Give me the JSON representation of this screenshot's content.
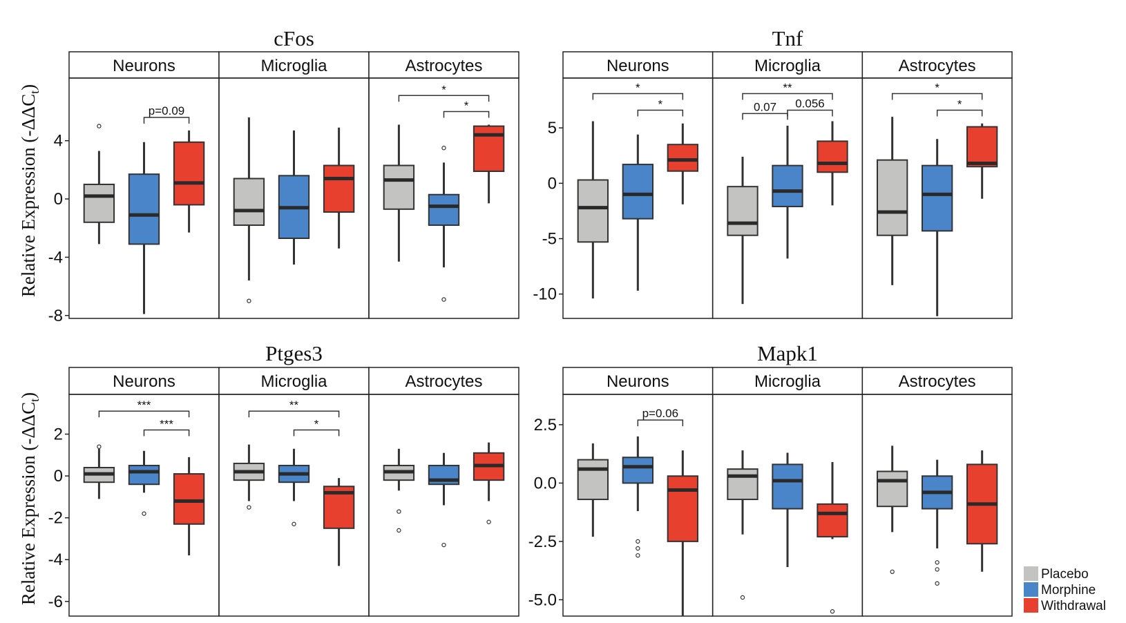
{
  "ylabels": [
    "Relative Expression (-ΔΔC",
    "t",
    ")"
  ],
  "colors": {
    "Placebo": "#c3c3c1",
    "Morphine": "#4b85c9",
    "Withdrawal": "#e8402f"
  },
  "legend": [
    {
      "label": "Placebo",
      "color": "#c3c3c1"
    },
    {
      "label": "Morphine",
      "color": "#4b85c9"
    },
    {
      "label": "Withdrawal",
      "color": "#e8402f"
    }
  ],
  "chart_data": [
    {
      "type": "boxplot",
      "title": "cFos",
      "ylim": [
        -8.2,
        8.3
      ],
      "yticks": [
        4,
        0,
        -4,
        -8
      ],
      "ytick_labels": [
        "4",
        "0",
        "-4",
        "-8"
      ],
      "facets": [
        {
          "label": "Neurons",
          "groups": [
            {
              "group": "Placebo",
              "min": -3.1,
              "q1": -1.6,
              "median": 0.2,
              "q3": 1.0,
              "max": 3.3,
              "outliers": [
                5.0
              ]
            },
            {
              "group": "Morphine",
              "min": -7.9,
              "q1": -3.1,
              "median": -1.1,
              "q3": 1.7,
              "max": 3.9,
              "outliers": []
            },
            {
              "group": "Withdrawal",
              "min": -2.3,
              "q1": -0.4,
              "median": 1.1,
              "q3": 3.9,
              "max": 4.7,
              "outliers": []
            }
          ],
          "brackets": [
            {
              "from": "Morphine",
              "to": "Withdrawal",
              "y": 5.6,
              "label": "p=0.09"
            }
          ]
        },
        {
          "label": "Microglia",
          "groups": [
            {
              "group": "Placebo",
              "min": -5.6,
              "q1": -1.8,
              "median": -0.8,
              "q3": 1.4,
              "max": 5.6,
              "outliers": [
                -7.0
              ]
            },
            {
              "group": "Morphine",
              "min": -4.5,
              "q1": -2.7,
              "median": -0.6,
              "q3": 1.6,
              "max": 4.7,
              "outliers": []
            },
            {
              "group": "Withdrawal",
              "min": -3.4,
              "q1": -0.9,
              "median": 1.4,
              "q3": 2.3,
              "max": 4.9,
              "outliers": []
            }
          ],
          "brackets": []
        },
        {
          "label": "Astrocytes",
          "groups": [
            {
              "group": "Placebo",
              "min": -4.3,
              "q1": -0.7,
              "median": 1.3,
              "q3": 2.3,
              "max": 5.1,
              "outliers": []
            },
            {
              "group": "Morphine",
              "min": -4.7,
              "q1": -1.8,
              "median": -0.5,
              "q3": 0.3,
              "max": 2.5,
              "outliers": [
                3.5,
                -6.9
              ]
            },
            {
              "group": "Withdrawal",
              "min": -0.3,
              "q1": 1.9,
              "median": 4.4,
              "q3": 5.0,
              "max": 5.1,
              "outliers": []
            }
          ],
          "brackets": [
            {
              "from": "Placebo",
              "to": "Withdrawal",
              "y": 7.1,
              "label": "*"
            },
            {
              "from": "Morphine",
              "to": "Withdrawal",
              "y": 6.0,
              "label": "*"
            }
          ]
        }
      ]
    },
    {
      "type": "boxplot",
      "title": "Tnf",
      "ylim": [
        -12.2,
        9.5
      ],
      "yticks": [
        5,
        0,
        -5,
        -10
      ],
      "ytick_labels": [
        "5",
        "0",
        "-5",
        "-10"
      ],
      "facets": [
        {
          "label": "Neurons",
          "groups": [
            {
              "group": "Placebo",
              "min": -10.4,
              "q1": -5.3,
              "median": -2.2,
              "q3": 0.3,
              "max": 5.6,
              "outliers": []
            },
            {
              "group": "Morphine",
              "min": -9.7,
              "q1": -3.2,
              "median": -1.0,
              "q3": 1.7,
              "max": 4.4,
              "outliers": []
            },
            {
              "group": "Withdrawal",
              "min": -1.9,
              "q1": 1.1,
              "median": 2.1,
              "q3": 3.5,
              "max": 5.4,
              "outliers": []
            }
          ],
          "brackets": [
            {
              "from": "Placebo",
              "to": "Withdrawal",
              "y": 8.1,
              "label": "*"
            },
            {
              "from": "Morphine",
              "to": "Withdrawal",
              "y": 6.6,
              "label": "*"
            }
          ]
        },
        {
          "label": "Microglia",
          "groups": [
            {
              "group": "Placebo",
              "min": -10.9,
              "q1": -4.7,
              "median": -3.6,
              "q3": -0.3,
              "max": 2.4,
              "outliers": []
            },
            {
              "group": "Morphine",
              "min": -6.8,
              "q1": -2.1,
              "median": -0.7,
              "q3": 1.6,
              "max": 5.2,
              "outliers": []
            },
            {
              "group": "Withdrawal",
              "min": -2.0,
              "q1": 1.0,
              "median": 1.8,
              "q3": 3.8,
              "max": 5.6,
              "outliers": []
            }
          ],
          "brackets": [
            {
              "from": "Placebo",
              "to": "Withdrawal",
              "y": 8.1,
              "label": "**"
            },
            {
              "from": "Placebo",
              "to": "Morphine",
              "y": 6.3,
              "label": "0.07"
            },
            {
              "from": "Morphine",
              "to": "Withdrawal",
              "y": 6.6,
              "label": "0.056"
            }
          ]
        },
        {
          "label": "Astrocytes",
          "groups": [
            {
              "group": "Placebo",
              "min": -9.2,
              "q1": -4.7,
              "median": -2.6,
              "q3": 2.1,
              "max": 6.0,
              "outliers": []
            },
            {
              "group": "Morphine",
              "min": -12.0,
              "q1": -4.3,
              "median": -1.0,
              "q3": 1.6,
              "max": 4.0,
              "outliers": []
            },
            {
              "group": "Withdrawal",
              "min": -1.4,
              "q1": 1.5,
              "median": 1.8,
              "q3": 5.1,
              "max": 5.4,
              "outliers": []
            }
          ],
          "brackets": [
            {
              "from": "Placebo",
              "to": "Withdrawal",
              "y": 8.1,
              "label": "*"
            },
            {
              "from": "Morphine",
              "to": "Withdrawal",
              "y": 6.6,
              "label": "*"
            }
          ]
        }
      ]
    },
    {
      "type": "boxplot",
      "title": "Ptges3",
      "ylim": [
        -6.7,
        3.9
      ],
      "yticks": [
        2,
        0,
        -2,
        -4,
        -6
      ],
      "ytick_labels": [
        "2",
        "0",
        "-2",
        "-4",
        "-6"
      ],
      "facets": [
        {
          "label": "Neurons",
          "groups": [
            {
              "group": "Placebo",
              "min": -1.1,
              "q1": -0.3,
              "median": 0.1,
              "q3": 0.4,
              "max": 1.3,
              "outliers": [
                1.4
              ]
            },
            {
              "group": "Morphine",
              "min": -0.8,
              "q1": -0.4,
              "median": 0.2,
              "q3": 0.5,
              "max": 1.2,
              "outliers": [
                -1.8
              ]
            },
            {
              "group": "Withdrawal",
              "min": -3.8,
              "q1": -2.3,
              "median": -1.2,
              "q3": 0.1,
              "max": 0.9,
              "outliers": []
            }
          ],
          "brackets": [
            {
              "from": "Placebo",
              "to": "Withdrawal",
              "y": 3.1,
              "label": "***"
            },
            {
              "from": "Morphine",
              "to": "Withdrawal",
              "y": 2.2,
              "label": "***"
            }
          ]
        },
        {
          "label": "Microglia",
          "groups": [
            {
              "group": "Placebo",
              "min": -1.2,
              "q1": -0.2,
              "median": 0.2,
              "q3": 0.6,
              "max": 1.5,
              "outliers": [
                -1.5
              ]
            },
            {
              "group": "Morphine",
              "min": -1.2,
              "q1": -0.3,
              "median": 0.1,
              "q3": 0.5,
              "max": 1.3,
              "outliers": [
                -2.3
              ]
            },
            {
              "group": "Withdrawal",
              "min": -4.3,
              "q1": -2.5,
              "median": -0.8,
              "q3": -0.5,
              "max": -0.1,
              "outliers": []
            }
          ],
          "brackets": [
            {
              "from": "Placebo",
              "to": "Withdrawal",
              "y": 3.1,
              "label": "**"
            },
            {
              "from": "Morphine",
              "to": "Withdrawal",
              "y": 2.2,
              "label": "*"
            }
          ]
        },
        {
          "label": "Astrocytes",
          "groups": [
            {
              "group": "Placebo",
              "min": -0.7,
              "q1": -0.2,
              "median": 0.2,
              "q3": 0.5,
              "max": 1.3,
              "outliers": [
                -1.7,
                -2.6
              ]
            },
            {
              "group": "Morphine",
              "min": -1.4,
              "q1": -0.4,
              "median": -0.2,
              "q3": 0.5,
              "max": 1.1,
              "outliers": [
                -3.3
              ]
            },
            {
              "group": "Withdrawal",
              "min": -1.2,
              "q1": -0.2,
              "median": 0.5,
              "q3": 1.1,
              "max": 1.6,
              "outliers": [
                -2.2
              ]
            }
          ],
          "brackets": []
        }
      ]
    },
    {
      "type": "boxplot",
      "title": "Mapk1",
      "ylim": [
        -5.7,
        3.8
      ],
      "yticks": [
        2.5,
        0.0,
        -2.5,
        -5.0
      ],
      "ytick_labels": [
        "2.5",
        "0.0",
        "-2.5",
        "-5.0"
      ],
      "facets": [
        {
          "label": "Neurons",
          "groups": [
            {
              "group": "Placebo",
              "min": -2.3,
              "q1": -0.7,
              "median": 0.6,
              "q3": 1.0,
              "max": 1.7,
              "outliers": []
            },
            {
              "group": "Morphine",
              "min": -1.2,
              "q1": 0.0,
              "median": 0.7,
              "q3": 1.1,
              "max": 2.0,
              "outliers": [
                -2.5,
                -2.8,
                -3.1
              ]
            },
            {
              "group": "Withdrawal",
              "min": -5.7,
              "q1": -2.5,
              "median": -0.3,
              "q3": 0.3,
              "max": 1.4,
              "outliers": []
            }
          ],
          "brackets": [
            {
              "from": "Morphine",
              "to": "Withdrawal",
              "y": 2.7,
              "label": "p=0.06"
            }
          ]
        },
        {
          "label": "Microglia",
          "groups": [
            {
              "group": "Placebo",
              "min": -2.2,
              "q1": -0.7,
              "median": 0.3,
              "q3": 0.6,
              "max": 1.4,
              "outliers": [
                -4.9
              ]
            },
            {
              "group": "Morphine",
              "min": -3.6,
              "q1": -1.1,
              "median": 0.1,
              "q3": 0.8,
              "max": 1.3,
              "outliers": []
            },
            {
              "group": "Withdrawal",
              "min": -2.4,
              "q1": -2.3,
              "median": -1.3,
              "q3": -0.9,
              "max": 0.9,
              "outliers": [
                -5.5
              ]
            }
          ],
          "brackets": []
        },
        {
          "label": "Astrocytes",
          "groups": [
            {
              "group": "Placebo",
              "min": -2.1,
              "q1": -1.0,
              "median": 0.1,
              "q3": 0.5,
              "max": 1.6,
              "outliers": [
                -3.8
              ]
            },
            {
              "group": "Morphine",
              "min": -2.8,
              "q1": -1.1,
              "median": -0.4,
              "q3": 0.3,
              "max": 1.0,
              "outliers": [
                -3.4,
                -3.7,
                -4.3
              ]
            },
            {
              "group": "Withdrawal",
              "min": -3.8,
              "q1": -2.6,
              "median": -0.9,
              "q3": 0.8,
              "max": 1.4,
              "outliers": []
            }
          ],
          "brackets": []
        }
      ]
    }
  ]
}
